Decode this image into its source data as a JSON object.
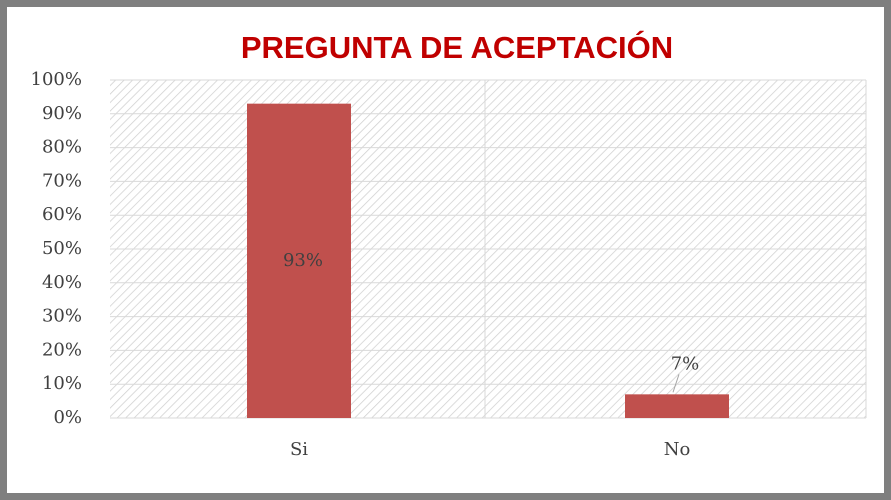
{
  "chart_data": {
    "type": "bar",
    "title": "PREGUNTA DE ACEPTACIÓN",
    "categories": [
      "Si",
      "No"
    ],
    "values": [
      93,
      7
    ],
    "value_labels": [
      "93%",
      "7%"
    ],
    "color": "#c0504d",
    "ylim": [
      0,
      100
    ],
    "yticks": [
      {
        "value": 0,
        "label": "0%"
      },
      {
        "value": 10,
        "label": "10%"
      },
      {
        "value": 20,
        "label": "20%"
      },
      {
        "value": 30,
        "label": "30%"
      },
      {
        "value": 40,
        "label": "40%"
      },
      {
        "value": 50,
        "label": "50%"
      },
      {
        "value": 60,
        "label": "60%"
      },
      {
        "value": 70,
        "label": "70%"
      },
      {
        "value": 80,
        "label": "80%"
      },
      {
        "value": 90,
        "label": "90%"
      },
      {
        "value": 100,
        "label": "100%"
      }
    ],
    "grid": true
  }
}
